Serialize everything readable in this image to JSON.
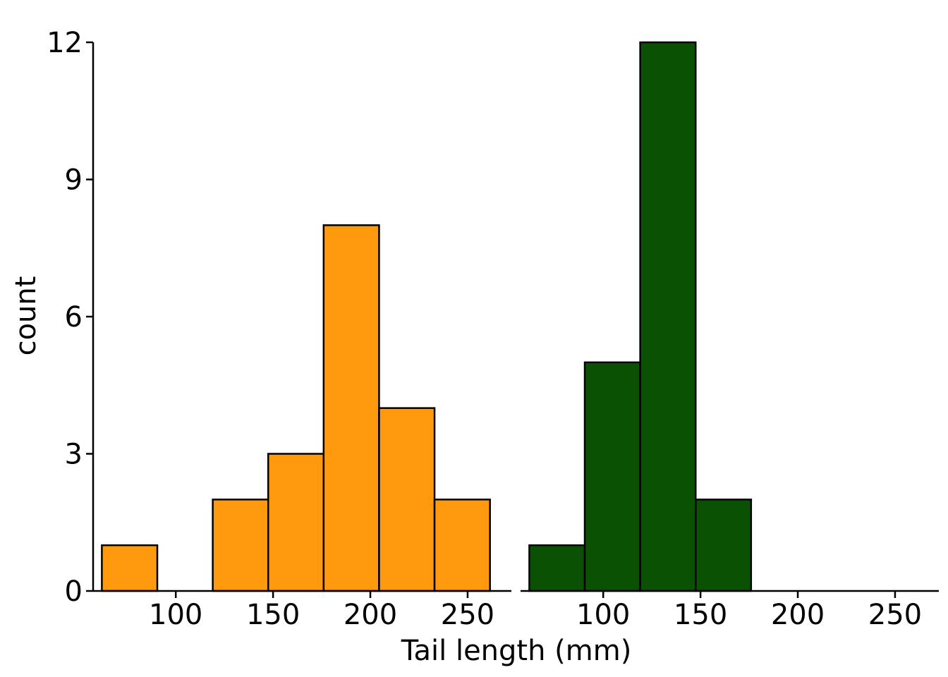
{
  "chart_data": {
    "type": "bar",
    "subtype": "histogram",
    "xlabel": "Tail length (mm)",
    "ylabel": "count",
    "ylim": [
      0,
      12
    ],
    "y_ticks": [
      0,
      3,
      6,
      9,
      12
    ],
    "xlim": [
      57.5,
      272.5
    ],
    "x_ticks": [
      100,
      150,
      200,
      250
    ],
    "bin_width": 28.5,
    "grid": false,
    "legend": "none",
    "panels": [
      {
        "id": "left",
        "color": "#FF9A0E",
        "bins": [
          {
            "x0": 62,
            "x1": 90.5,
            "count": 1
          },
          {
            "x0": 90.5,
            "x1": 119,
            "count": 0
          },
          {
            "x0": 119,
            "x1": 147.5,
            "count": 2
          },
          {
            "x0": 147.5,
            "x1": 176,
            "count": 3
          },
          {
            "x0": 176,
            "x1": 204.5,
            "count": 8
          },
          {
            "x0": 204.5,
            "x1": 233,
            "count": 4
          },
          {
            "x0": 233,
            "x1": 261.5,
            "count": 2
          }
        ]
      },
      {
        "id": "right",
        "color": "#0B5103",
        "bins": [
          {
            "x0": 62,
            "x1": 90.5,
            "count": 1
          },
          {
            "x0": 90.5,
            "x1": 119,
            "count": 5
          },
          {
            "x0": 119,
            "x1": 147.5,
            "count": 12
          },
          {
            "x0": 147.5,
            "x1": 176,
            "count": 2
          },
          {
            "x0": 176,
            "x1": 204.5,
            "count": 0
          },
          {
            "x0": 204.5,
            "x1": 233,
            "count": 0
          },
          {
            "x0": 233,
            "x1": 261.5,
            "count": 0
          }
        ]
      }
    ]
  }
}
